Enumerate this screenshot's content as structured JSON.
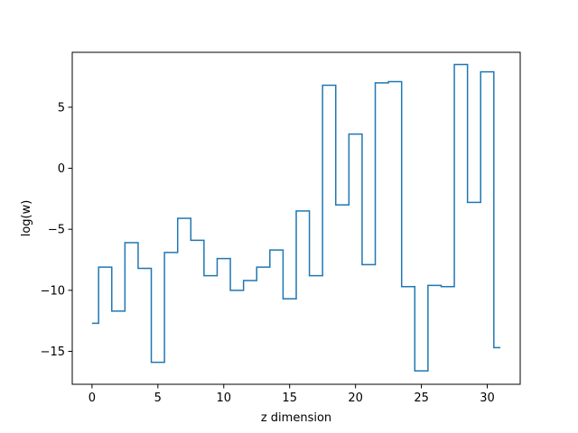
{
  "chart_data": {
    "type": "line",
    "step": "mid",
    "xlabel": "z dimension",
    "ylabel": "log(w)",
    "xlim": [
      -1.5,
      32.5
    ],
    "ylim": [
      -17.7,
      9.5
    ],
    "xticks": [
      0,
      5,
      10,
      15,
      20,
      25,
      30
    ],
    "yticks": [
      -15,
      -10,
      -5,
      0,
      5
    ],
    "series": [
      {
        "color": "#1f77b4",
        "x": [
          0,
          1,
          2,
          3,
          4,
          5,
          6,
          7,
          8,
          9,
          10,
          11,
          12,
          13,
          14,
          15,
          16,
          17,
          18,
          19,
          20,
          21,
          22,
          23,
          24,
          25,
          26,
          27,
          28,
          29,
          30,
          31
        ],
        "y": [
          -12.7,
          -8.1,
          -11.7,
          -6.1,
          -8.2,
          -15.9,
          -6.9,
          -4.1,
          -5.9,
          -8.8,
          -7.4,
          -10.0,
          -9.2,
          -8.1,
          -6.7,
          -10.7,
          -3.5,
          -8.8,
          6.8,
          -3.0,
          2.8,
          -7.9,
          7.0,
          7.1,
          -9.7,
          -16.6,
          -9.6,
          -9.7,
          8.5,
          -2.8,
          7.9,
          -14.7
        ]
      }
    ]
  }
}
